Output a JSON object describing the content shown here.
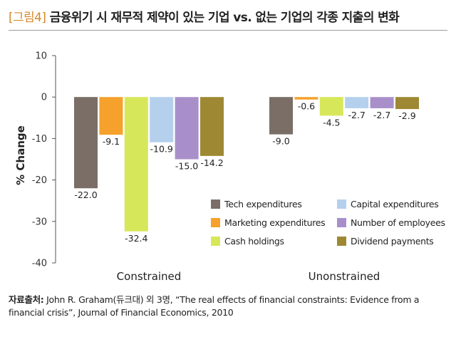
{
  "chart_data": {
    "type": "bar",
    "title_tag": "[그림4]",
    "title": "금융위기 시 재무적 제약이 있는 기업 vs. 없는 기업의 각종 지출의 변화",
    "xlabel": "",
    "ylabel": "% Change",
    "ylim": [
      -40,
      10
    ],
    "yticks": [
      10,
      0,
      -10,
      -20,
      -30,
      -40
    ],
    "categories": [
      "Constrained",
      "Unonstrained"
    ],
    "series": [
      {
        "name": "Tech expenditures",
        "color": "#7a6e66",
        "values": [
          -22.0,
          -9.0
        ],
        "labels": [
          "-22.0",
          "-9.0"
        ]
      },
      {
        "name": "Marketing expenditures",
        "color": "#f5a12c",
        "values": [
          -9.1,
          -0.6
        ],
        "labels": [
          "-9.1",
          "-0.6"
        ]
      },
      {
        "name": "Cash holdings",
        "color": "#d6e85a",
        "values": [
          -32.4,
          -4.5
        ],
        "labels": [
          "-32.4",
          "-4.5"
        ]
      },
      {
        "name": "Capital expenditures",
        "color": "#b4d0ec",
        "values": [
          -10.9,
          -2.7
        ],
        "labels": [
          "-10.9",
          "-2.7"
        ]
      },
      {
        "name": "Number of employees",
        "color": "#a98fca",
        "values": [
          -15.0,
          -2.7
        ],
        "labels": [
          "-15.0",
          "-2.7"
        ]
      },
      {
        "name": "Dividend payments",
        "color": "#9e8833",
        "values": [
          -14.2,
          -2.9
        ],
        "labels": [
          "-14.2",
          "-2.9"
        ]
      }
    ],
    "legend_order": [
      0,
      3,
      1,
      4,
      2,
      5
    ],
    "legend_position": "lower-right",
    "grid": false
  },
  "source": {
    "label": "자료출처:",
    "text": " John R. Graham(듀크대) 외 3명, “The real effects of financial constraints: Evidence from a financial crisis”, Journal of Financial Economics, 2010"
  }
}
